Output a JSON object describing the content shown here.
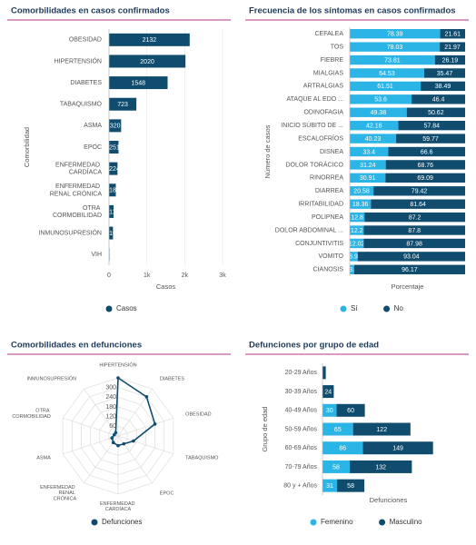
{
  "chart_data": [
    {
      "type": "bar",
      "title": "Comorbilidades en casos confirmados",
      "categories": [
        "OBESIDAD",
        "HIPERTENSIÓN",
        "DIABETES",
        "TABAQUISMO",
        "ASMA",
        "EPOC",
        "ENFERMEDAD CARDÍACA",
        "ENFERMEDAD RENAL CRÓNICA",
        "OTRA CORMOBILIDAD",
        "INMUNOSUPRESIÓN",
        "VIH"
      ],
      "series": [
        {
          "name": "Casos",
          "color": "#0f4c6e",
          "values": [
            2132,
            2020,
            1548,
            723,
            320,
            251,
            224,
            180,
            121,
            105,
            13
          ]
        }
      ],
      "xlim": [
        0,
        3000
      ],
      "xticks": [
        0,
        {
          "value": 1000,
          "label": "1k"
        },
        {
          "value": 2000,
          "label": "2k"
        },
        {
          "value": 3000,
          "label": "3k"
        }
      ],
      "xlabel": "Casos",
      "ylabel": "Comorbilidad",
      "grid": true,
      "legend": "bottom"
    },
    {
      "type": "bar",
      "title": "Frecuencia de los síntomas en casos confirmados",
      "categories": [
        "CEFALEA",
        "TOS",
        "FIEBRE",
        "MIALGIAS",
        "ARTRALGIAS",
        "ATAQUE AL EDO ...",
        "ODINOFAGIA",
        "INICIO SÚBITO DE ...",
        "ESCALOFRÍOS",
        "DISNEA",
        "DOLOR TORÁCICO",
        "RINORREA",
        "DIARREA",
        "IRRITABILIDAD",
        "POLIPNEA",
        "DOLOR ABDOMINAL ...",
        "CONJUNTIVITIS",
        "VOMITO",
        "CIANOSIS"
      ],
      "series": [
        {
          "name": "Sí",
          "color": "#2bb5e6",
          "values": [
            78.39,
            78.03,
            73.81,
            64.53,
            61.51,
            53.6,
            49.38,
            42.16,
            40.23,
            33.4,
            31.24,
            30.91,
            20.58,
            18.36,
            12.8,
            12.2,
            12.02,
            6.96,
            3.83
          ]
        },
        {
          "name": "No",
          "color": "#0f4c6e",
          "values": [
            21.61,
            21.97,
            26.19,
            35.47,
            38.49,
            46.4,
            50.62,
            57.84,
            59.77,
            66.6,
            68.76,
            69.09,
            79.42,
            81.64,
            87.2,
            87.8,
            87.98,
            93.04,
            96.17
          ]
        }
      ],
      "stacked": true,
      "xlim": [
        0,
        100
      ],
      "xlabel": "Porcentaje",
      "ylabel": "Número de casos",
      "legend": "bottom"
    },
    {
      "type": "radar",
      "title": "Comorbilidades en defunciones",
      "categories": [
        "HIPERTENSIÓN",
        "DIABETES",
        "OBESIDAD",
        "TABAQUISMO",
        "EPOC",
        "ENFERMEDAD CARDÍACA",
        "ENFERMEDAD RENAL CRÓNICA",
        "ASMA",
        "OTRA CORMOBILIDAD",
        "INMUNOSUPRESIÓN"
      ],
      "series": [
        {
          "name": "Defunciones",
          "color": "#0f4c6e",
          "values": [
            360,
            300,
            240,
            100,
            60,
            60,
            50,
            40,
            25,
            25
          ]
        }
      ],
      "rlim": [
        0,
        360
      ],
      "rticks": [
        60,
        120,
        180,
        240,
        300
      ],
      "legend": "bottom"
    },
    {
      "type": "bar",
      "title": "Defunciones por grupo de edad",
      "categories": [
        "20-29 Años",
        "30-39 Años",
        "40-49 Años",
        "50-59 Años",
        "60-69 Años",
        "70-79 Años",
        "80 y + Años"
      ],
      "series": [
        {
          "name": "Femenino",
          "color": "#2bb5e6",
          "values": [
            null,
            null,
            30,
            65,
            86,
            58,
            31
          ]
        },
        {
          "name": "Masculino",
          "color": "#0f4c6e",
          "values": [
            7,
            24,
            60,
            122,
            149,
            132,
            58
          ]
        }
      ],
      "stacked": true,
      "xlim": [
        0,
        280
      ],
      "xlabel": "Defunciones",
      "ylabel": "Grupo de edad",
      "legend": "bottom"
    }
  ]
}
